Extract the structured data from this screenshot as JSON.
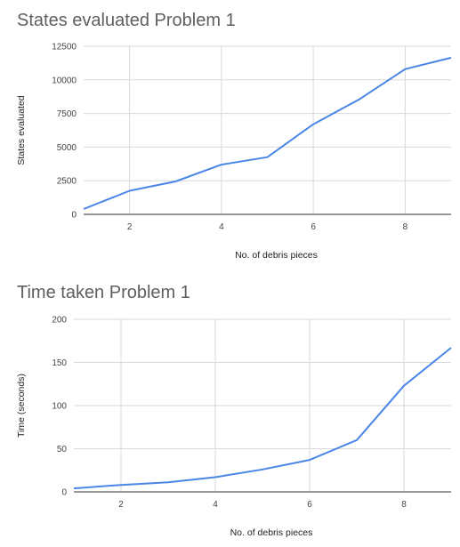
{
  "chart_data": [
    {
      "type": "line",
      "title": "States evaluated Problem 1",
      "xlabel": "No. of debris pieces",
      "ylabel": "States evaluated",
      "xlim": [
        1,
        9
      ],
      "ylim": [
        0,
        12500
      ],
      "xticks": [
        2,
        4,
        6,
        8
      ],
      "yticks": [
        0,
        2500,
        5000,
        7500,
        10000,
        12500
      ],
      "grid": true,
      "legend": "none",
      "color": "#4a86e8",
      "x": [
        1,
        2,
        3,
        4,
        5,
        6,
        7,
        8,
        9
      ],
      "series": [
        {
          "values": [
            400,
            1750,
            2450,
            3700,
            4250,
            6700,
            8550,
            10800,
            11650
          ]
        }
      ]
    },
    {
      "type": "line",
      "title": "Time taken Problem 1",
      "xlabel": "No. of debris pieces",
      "ylabel": "Time (seconds)",
      "xlim": [
        1,
        9
      ],
      "ylim": [
        0,
        200
      ],
      "xticks": [
        2,
        4,
        6,
        8
      ],
      "yticks": [
        0,
        50,
        100,
        150,
        200
      ],
      "grid": true,
      "legend": "none",
      "color": "#4a86e8",
      "x": [
        1,
        2,
        3,
        4,
        5,
        6,
        7,
        8,
        9
      ],
      "series": [
        {
          "values": [
            4,
            8,
            11,
            17,
            26,
            37,
            60,
            123,
            167
          ]
        }
      ]
    }
  ]
}
